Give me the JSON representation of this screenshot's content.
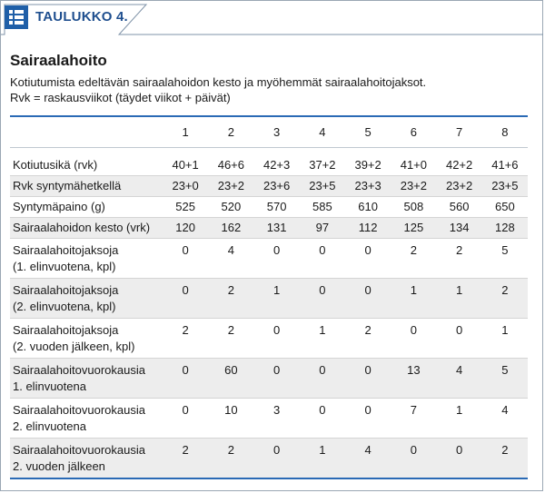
{
  "tab": {
    "icon": "table-list-icon",
    "label": "TAULUKKO 4."
  },
  "title": "Sairaalahoito",
  "subtitle_line1": "Kotiutumista edeltävän sairaalahoidon kesto ja myöhemmät sairaalahoitojaksot.",
  "subtitle_line2": "Rvk = raskausviikot (täydet viikot + päivät)",
  "colors": {
    "accent": "#2a6ab5",
    "tab_text": "#1f4f8f",
    "row_alt": "#ededed"
  },
  "columns": [
    "1",
    "2",
    "3",
    "4",
    "5",
    "6",
    "7",
    "8"
  ],
  "rows": [
    {
      "label1": "Kotiutusikä (rvk)",
      "label2": "",
      "values": [
        "40+1",
        "46+6",
        "42+3",
        "37+2",
        "39+2",
        "41+0",
        "42+2",
        "41+6"
      ]
    },
    {
      "label1": "Rvk syntymähetkellä",
      "label2": "",
      "values": [
        "23+0",
        "23+2",
        "23+6",
        "23+5",
        "23+3",
        "23+2",
        "23+2",
        "23+5"
      ]
    },
    {
      "label1": "Syntymäpaino (g)",
      "label2": "",
      "values": [
        "525",
        "520",
        "570",
        "585",
        "610",
        "508",
        "560",
        "650"
      ]
    },
    {
      "label1": "Sairaalahoidon kesto (vrk)",
      "label2": "",
      "values": [
        "120",
        "162",
        "131",
        "97",
        "112",
        "125",
        "134",
        "128"
      ]
    },
    {
      "label1": "Sairaalahoitojaksoja",
      "label2": "(1. elinvuotena, kpl)",
      "values": [
        "0",
        "4",
        "0",
        "0",
        "0",
        "2",
        "2",
        "5"
      ]
    },
    {
      "label1": "Sairaalahoitojaksoja",
      "label2": "(2. elinvuotena, kpl)",
      "values": [
        "0",
        "2",
        "1",
        "0",
        "0",
        "1",
        "1",
        "2"
      ]
    },
    {
      "label1": "Sairaalahoitojaksoja",
      "label2": "(2. vuoden jälkeen, kpl)",
      "values": [
        "2",
        "2",
        "0",
        "1",
        "2",
        "0",
        "0",
        "1"
      ]
    },
    {
      "label1": "Sairaalahoitovuorokausia",
      "label2": "1. elinvuotena",
      "values": [
        "0",
        "60",
        "0",
        "0",
        "0",
        "13",
        "4",
        "5"
      ]
    },
    {
      "label1": "Sairaalahoitovuorokausia",
      "label2": "2. elinvuotena",
      "values": [
        "0",
        "10",
        "3",
        "0",
        "0",
        "7",
        "1",
        "4"
      ]
    },
    {
      "label1": "Sairaalahoitovuorokausia",
      "label2": "2. vuoden jälkeen",
      "values": [
        "2",
        "2",
        "0",
        "1",
        "4",
        "0",
        "0",
        "2"
      ]
    }
  ]
}
